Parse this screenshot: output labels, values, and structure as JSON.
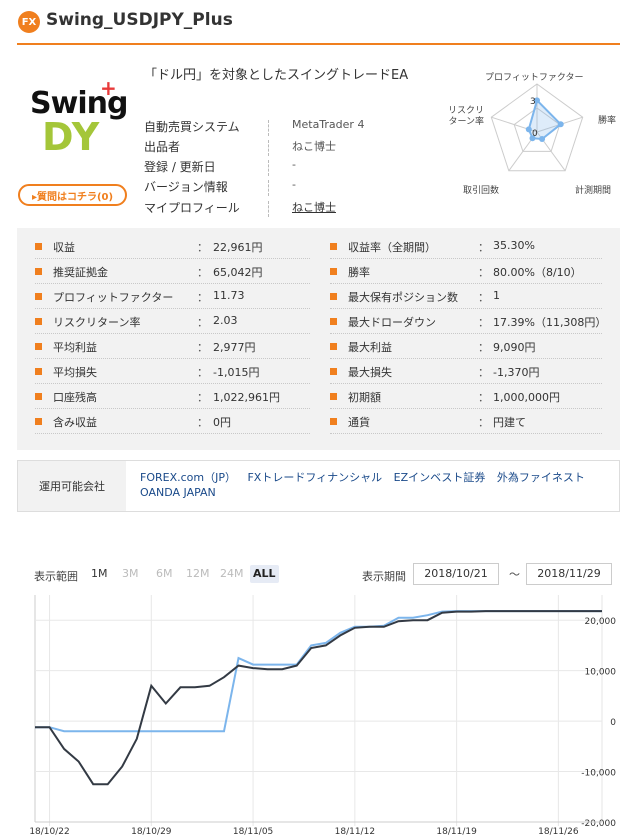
{
  "header": {
    "badge": "FX",
    "title": "Swing_USDJPY_Plus"
  },
  "logo": {
    "top": "Swing",
    "plus": "+",
    "bottom": "DY"
  },
  "ask_button": "▸質問はコチラ(0)",
  "description": "「ドル円」を対象としたスイングトレードEA",
  "info": [
    {
      "label": "自動売買システム",
      "value": "MetaTrader 4"
    },
    {
      "label": "出品者",
      "value": "ねこ博士"
    },
    {
      "label": "登録 / 更新日",
      "value": "-"
    },
    {
      "label": "バージョン情報",
      "value": "-"
    },
    {
      "label": "マイプロフィール",
      "value": "ねこ博士"
    }
  ],
  "radar": {
    "axes": [
      "プロフィットファクター",
      "勝率",
      "計測期間",
      "取引回数",
      "リスクリターン率"
    ],
    "scale_labels": [
      "3",
      "0"
    ],
    "values": [
      3.3,
      2.6,
      0.9,
      0.8,
      0.9
    ],
    "max": 5
  },
  "stats_left": [
    {
      "label": "収益",
      "value": "22,961円"
    },
    {
      "label": "推奨証拠金",
      "value": "65,042円"
    },
    {
      "label": "プロフィットファクター",
      "value": "11.73"
    },
    {
      "label": "リスクリターン率",
      "value": "2.03"
    },
    {
      "label": "平均利益",
      "value": "2,977円"
    },
    {
      "label": "平均損失",
      "value": "-1,015円"
    },
    {
      "label": "口座残高",
      "value": "1,022,961円"
    },
    {
      "label": "含み収益",
      "value": "0円"
    }
  ],
  "stats_right": [
    {
      "label": "収益率（全期間）",
      "value": "35.30%"
    },
    {
      "label": "勝率",
      "value": "80.00%（8/10）"
    },
    {
      "label": "最大保有ポジション数",
      "value": "1"
    },
    {
      "label": "最大ドローダウン",
      "value": "17.39%（11,308円）"
    },
    {
      "label": "最大利益",
      "value": "9,090円"
    },
    {
      "label": "最大損失",
      "value": "-1,370円"
    },
    {
      "label": "初期額",
      "value": "1,000,000円"
    },
    {
      "label": "通貨",
      "value": "円建て"
    }
  ],
  "stats_colon": "：",
  "brokers": {
    "label": "運用可能会社",
    "items": [
      "FOREX.com（JP）",
      "FXトレードフィナンシャル",
      "EZインベスト証券",
      "外為ファイネスト",
      "OANDA JAPAN"
    ]
  },
  "range": {
    "label": "表示範囲",
    "buttons": [
      "1M",
      "3M",
      "6M",
      "12M",
      "24M",
      "ALL"
    ],
    "active": "ALL"
  },
  "period": {
    "label": "表示期間",
    "from": "2018/10/21",
    "tilde": "〜",
    "to": "2018/11/29"
  },
  "colors": {
    "accent": "#f07f1e",
    "line_dark": "#333a44",
    "line_blue": "#7cb5ec",
    "radar_fill": "#7cb5ec"
  },
  "chart_data": {
    "type": "line",
    "x_tick_labels": [
      "18/10/22",
      "18/10/29",
      "18/11/05",
      "18/11/12",
      "18/11/19",
      "18/11/26"
    ],
    "x_range": [
      "2018-10-21",
      "2018-11-29"
    ],
    "ylim": [
      -20000,
      25000
    ],
    "y_ticks": [
      20000,
      10000,
      0,
      -10000,
      -20000
    ],
    "y_tick_labels": [
      "20,000",
      "10,000",
      "0",
      "-10,000",
      "-20,000"
    ],
    "series": [
      {
        "color": "#333a44",
        "points": [
          [
            "2018-10-21",
            -1200
          ],
          [
            "2018-10-22",
            -1200
          ],
          [
            "2018-10-23",
            -5500
          ],
          [
            "2018-10-24",
            -8000
          ],
          [
            "2018-10-25",
            -12500
          ],
          [
            "2018-10-26",
            -12500
          ],
          [
            "2018-10-27",
            -9000
          ],
          [
            "2018-10-28",
            -3500
          ],
          [
            "2018-10-29",
            7000
          ],
          [
            "2018-10-30",
            3500
          ],
          [
            "2018-10-31",
            6700
          ],
          [
            "2018-11-01",
            6700
          ],
          [
            "2018-11-02",
            7000
          ],
          [
            "2018-11-03",
            8700
          ],
          [
            "2018-11-04",
            11000
          ],
          [
            "2018-11-05",
            10500
          ],
          [
            "2018-11-06",
            10300
          ],
          [
            "2018-11-07",
            10300
          ],
          [
            "2018-11-08",
            11000
          ],
          [
            "2018-11-09",
            14500
          ],
          [
            "2018-11-10",
            15000
          ],
          [
            "2018-11-11",
            17000
          ],
          [
            "2018-11-12",
            18500
          ],
          [
            "2018-11-13",
            18700
          ],
          [
            "2018-11-14",
            18700
          ],
          [
            "2018-11-15",
            19800
          ],
          [
            "2018-11-16",
            20000
          ],
          [
            "2018-11-17",
            20000
          ],
          [
            "2018-11-18",
            21500
          ],
          [
            "2018-11-19",
            21700
          ],
          [
            "2018-11-20",
            21700
          ],
          [
            "2018-11-21",
            21800
          ],
          [
            "2018-11-22",
            21800
          ],
          [
            "2018-11-23",
            21800
          ],
          [
            "2018-11-24",
            21800
          ],
          [
            "2018-11-25",
            21800
          ],
          [
            "2018-11-26",
            21800
          ],
          [
            "2018-11-29",
            21800
          ]
        ]
      },
      {
        "color": "#7cb5ec",
        "points": [
          [
            "2018-10-21",
            -1200
          ],
          [
            "2018-10-22",
            -1200
          ],
          [
            "2018-10-23",
            -2000
          ],
          [
            "2018-10-24",
            -2000
          ],
          [
            "2018-11-03",
            -2000
          ],
          [
            "2018-11-04",
            12500
          ],
          [
            "2018-11-05",
            11200
          ],
          [
            "2018-11-06",
            11200
          ],
          [
            "2018-11-07",
            11200
          ],
          [
            "2018-11-08",
            11200
          ],
          [
            "2018-11-09",
            15000
          ],
          [
            "2018-11-10",
            15500
          ],
          [
            "2018-11-11",
            17500
          ],
          [
            "2018-11-12",
            18700
          ],
          [
            "2018-11-13",
            18700
          ],
          [
            "2018-11-14",
            18900
          ],
          [
            "2018-11-15",
            20500
          ],
          [
            "2018-11-16",
            20500
          ],
          [
            "2018-11-17",
            21000
          ],
          [
            "2018-11-18",
            21700
          ],
          [
            "2018-11-19",
            21800
          ],
          [
            "2018-11-29",
            21800
          ]
        ]
      }
    ]
  }
}
